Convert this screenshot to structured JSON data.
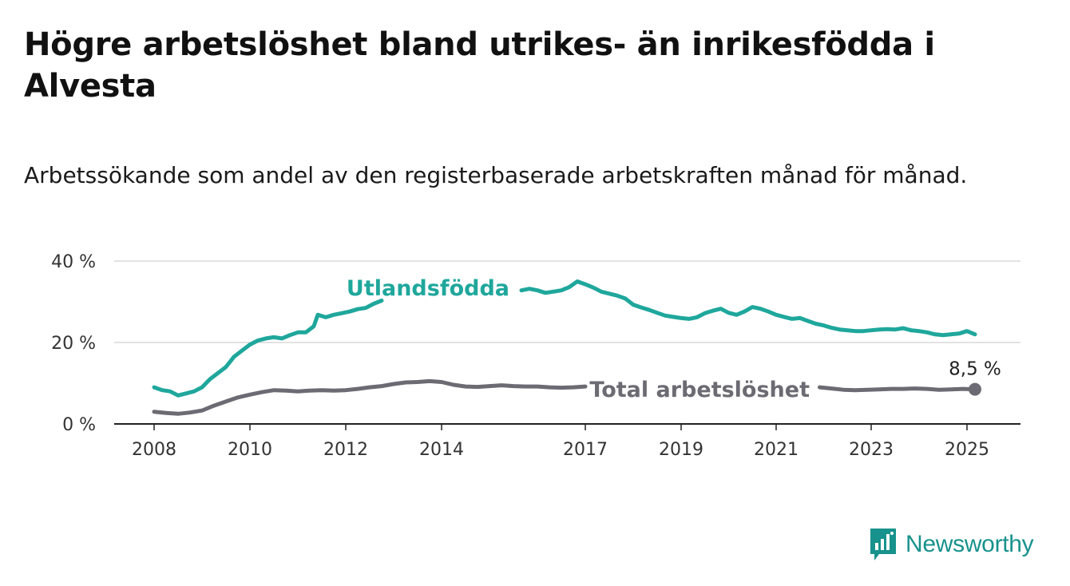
{
  "title": "Högre arbetslöshet bland utrikes- än inrikesfödda i Alvesta",
  "subtitle": "Arbetssökande som andel av den registerbaserade arbetskraften månad för månad.",
  "brand": {
    "name": "Newsworthy",
    "icon": "bar-chart-speech-bubble-icon",
    "color": "#17928c"
  },
  "chart_data": {
    "type": "line",
    "title": "Högre arbetslöshet bland utrikes- än inrikesfödda i Alvesta",
    "subtitle": "Arbetssökande som andel av den registerbaserade arbetskraften månad för månad.",
    "xlabel": "",
    "ylabel": "",
    "x_ticks": [
      "2008",
      "2010",
      "2012",
      "2014",
      "2017",
      "2019",
      "2021",
      "2023",
      "2025"
    ],
    "y_ticks": [
      "0 %",
      "20 %",
      "40 %"
    ],
    "ylim": [
      0,
      40
    ],
    "grid": true,
    "legend": "inline labels",
    "end_label": "8,5 %",
    "series": [
      {
        "name": "Utlandsfödda",
        "color": "#1fa79c",
        "points": [
          [
            "2008-01",
            9.0
          ],
          [
            "2008-03",
            8.3
          ],
          [
            "2008-05",
            8.0
          ],
          [
            "2008-07",
            7.0
          ],
          [
            "2008-09",
            7.5
          ],
          [
            "2008-11",
            8.0
          ],
          [
            "2009-01",
            9.0
          ],
          [
            "2009-03",
            11.0
          ],
          [
            "2009-05",
            12.5
          ],
          [
            "2009-07",
            14.0
          ],
          [
            "2009-09",
            16.5
          ],
          [
            "2009-11",
            18.0
          ],
          [
            "2010-01",
            19.5
          ],
          [
            "2010-03",
            20.5
          ],
          [
            "2010-05",
            21.0
          ],
          [
            "2010-07",
            21.3
          ],
          [
            "2010-09",
            21.0
          ],
          [
            "2010-11",
            21.8
          ],
          [
            "2011-01",
            22.5
          ],
          [
            "2011-03",
            22.5
          ],
          [
            "2011-05",
            24.0
          ],
          [
            "2011-06",
            26.8
          ],
          [
            "2011-08",
            26.2
          ],
          [
            "2011-10",
            26.8
          ],
          [
            "2011-12",
            27.2
          ],
          [
            "2012-02",
            27.6
          ],
          [
            "2012-04",
            28.2
          ],
          [
            "2012-06",
            28.5
          ],
          [
            "2012-08",
            29.5
          ],
          [
            "2012-10",
            30.3
          ],
          [
            "2015-09",
            32.8
          ],
          [
            "2015-11",
            33.2
          ],
          [
            "2016-01",
            32.8
          ],
          [
            "2016-03",
            32.2
          ],
          [
            "2016-05",
            32.5
          ],
          [
            "2016-07",
            32.8
          ],
          [
            "2016-09",
            33.6
          ],
          [
            "2016-11",
            35.0
          ],
          [
            "2017-01",
            34.3
          ],
          [
            "2017-03",
            33.5
          ],
          [
            "2017-05",
            32.5
          ],
          [
            "2017-07",
            32.0
          ],
          [
            "2017-09",
            31.5
          ],
          [
            "2017-11",
            30.8
          ],
          [
            "2018-01",
            29.3
          ],
          [
            "2018-03",
            28.6
          ],
          [
            "2018-05",
            28.0
          ],
          [
            "2018-07",
            27.3
          ],
          [
            "2018-09",
            26.6
          ],
          [
            "2018-11",
            26.3
          ],
          [
            "2019-01",
            26.0
          ],
          [
            "2019-03",
            25.8
          ],
          [
            "2019-05",
            26.2
          ],
          [
            "2019-07",
            27.2
          ],
          [
            "2019-09",
            27.8
          ],
          [
            "2019-11",
            28.3
          ],
          [
            "2020-01",
            27.3
          ],
          [
            "2020-03",
            26.8
          ],
          [
            "2020-05",
            27.6
          ],
          [
            "2020-07",
            28.7
          ],
          [
            "2020-09",
            28.3
          ],
          [
            "2020-11",
            27.6
          ],
          [
            "2021-01",
            26.8
          ],
          [
            "2021-03",
            26.3
          ],
          [
            "2021-05",
            25.8
          ],
          [
            "2021-07",
            26.0
          ],
          [
            "2021-09",
            25.3
          ],
          [
            "2021-11",
            24.6
          ],
          [
            "2022-01",
            24.2
          ],
          [
            "2022-03",
            23.6
          ],
          [
            "2022-05",
            23.2
          ],
          [
            "2022-07",
            23.0
          ],
          [
            "2022-09",
            22.8
          ],
          [
            "2022-11",
            22.8
          ],
          [
            "2023-01",
            23.0
          ],
          [
            "2023-03",
            23.2
          ],
          [
            "2023-05",
            23.3
          ],
          [
            "2023-07",
            23.2
          ],
          [
            "2023-09",
            23.5
          ],
          [
            "2023-11",
            23.0
          ],
          [
            "2024-01",
            22.8
          ],
          [
            "2024-03",
            22.5
          ],
          [
            "2024-05",
            22.0
          ],
          [
            "2024-07",
            21.8
          ],
          [
            "2024-09",
            22.0
          ],
          [
            "2024-11",
            22.2
          ],
          [
            "2025-01",
            22.8
          ],
          [
            "2025-03",
            22.0
          ]
        ]
      },
      {
        "name": "Total arbetslöshet",
        "color": "#6c6a72",
        "points": [
          [
            "2008-01",
            3.0
          ],
          [
            "2008-04",
            2.7
          ],
          [
            "2008-07",
            2.5
          ],
          [
            "2008-10",
            2.8
          ],
          [
            "2009-01",
            3.3
          ],
          [
            "2009-04",
            4.5
          ],
          [
            "2009-07",
            5.5
          ],
          [
            "2009-10",
            6.5
          ],
          [
            "2010-01",
            7.2
          ],
          [
            "2010-04",
            7.8
          ],
          [
            "2010-07",
            8.3
          ],
          [
            "2010-10",
            8.2
          ],
          [
            "2011-01",
            8.0
          ],
          [
            "2011-04",
            8.2
          ],
          [
            "2011-07",
            8.3
          ],
          [
            "2011-10",
            8.2
          ],
          [
            "2012-01",
            8.3
          ],
          [
            "2012-04",
            8.6
          ],
          [
            "2012-07",
            9.0
          ],
          [
            "2012-10",
            9.3
          ],
          [
            "2013-01",
            9.8
          ],
          [
            "2013-04",
            10.2
          ],
          [
            "2013-07",
            10.3
          ],
          [
            "2013-10",
            10.5
          ],
          [
            "2014-01",
            10.3
          ],
          [
            "2014-04",
            9.6
          ],
          [
            "2014-07",
            9.2
          ],
          [
            "2014-10",
            9.1
          ],
          [
            "2015-01",
            9.3
          ],
          [
            "2015-04",
            9.5
          ],
          [
            "2015-07",
            9.3
          ],
          [
            "2015-10",
            9.2
          ],
          [
            "2016-01",
            9.2
          ],
          [
            "2016-04",
            9.0
          ],
          [
            "2016-07",
            8.9
          ],
          [
            "2016-10",
            9.0
          ],
          [
            "2017-01",
            9.2
          ],
          [
            "2021-12",
            9.0
          ],
          [
            "2022-03",
            8.7
          ],
          [
            "2022-06",
            8.4
          ],
          [
            "2022-09",
            8.3
          ],
          [
            "2022-12",
            8.4
          ],
          [
            "2023-03",
            8.5
          ],
          [
            "2023-06",
            8.6
          ],
          [
            "2023-09",
            8.6
          ],
          [
            "2023-12",
            8.7
          ],
          [
            "2024-03",
            8.6
          ],
          [
            "2024-06",
            8.4
          ],
          [
            "2024-09",
            8.5
          ],
          [
            "2024-12",
            8.6
          ],
          [
            "2025-03",
            8.5
          ]
        ]
      }
    ]
  }
}
